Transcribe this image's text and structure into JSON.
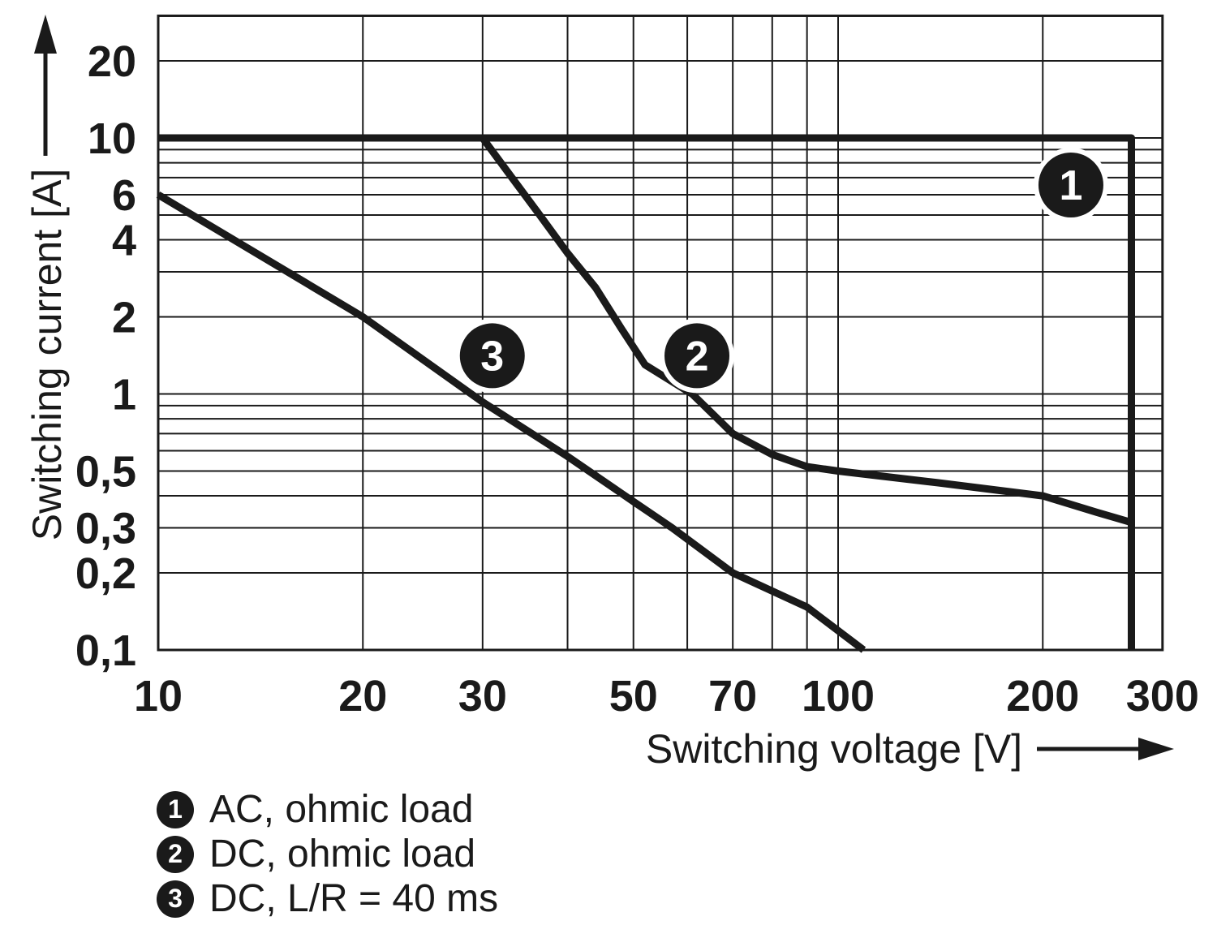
{
  "chart_data": {
    "type": "line",
    "scale": "log-log",
    "grid": true,
    "x_axis": {
      "label": "Switching voltage [V]",
      "unit": "V",
      "range": [
        10,
        300
      ],
      "tick_labels": [
        "10",
        "20",
        "30",
        "50",
        "70",
        "100",
        "200",
        "300"
      ],
      "tick_values": [
        10,
        20,
        30,
        50,
        70,
        100,
        200,
        300
      ],
      "gridlines": [
        20,
        30,
        40,
        50,
        60,
        70,
        80,
        90,
        100,
        200
      ],
      "arrow": "right"
    },
    "y_axis": {
      "label": "Switching current [A]",
      "unit": "A",
      "range": [
        0.1,
        30
      ],
      "tick_labels": [
        "20",
        "10",
        "6",
        "4",
        "2",
        "1",
        "0,5",
        "0,3",
        "0,2",
        "0,1"
      ],
      "tick_values": [
        20,
        10,
        6,
        4,
        2,
        1,
        0.5,
        0.3,
        0.2,
        0.1
      ],
      "gridlines": [
        20,
        10,
        9,
        8,
        7,
        6,
        5,
        4,
        3,
        2,
        1,
        0.9,
        0.8,
        0.7,
        0.6,
        0.5,
        0.4,
        0.3,
        0.2
      ],
      "arrow": "up"
    },
    "series": [
      {
        "id": "1",
        "name": "AC, ohmic load",
        "points": [
          [
            10,
            10
          ],
          [
            270,
            10
          ],
          [
            270,
            0.1
          ]
        ]
      },
      {
        "id": "2",
        "name": "DC, ohmic load",
        "points": [
          [
            30,
            10
          ],
          [
            33,
            7.1
          ],
          [
            36,
            5.2
          ],
          [
            40,
            3.55
          ],
          [
            44,
            2.6
          ],
          [
            48,
            1.8
          ],
          [
            52,
            1.3
          ],
          [
            56,
            1.15
          ],
          [
            61,
            1.0
          ],
          [
            70,
            0.7
          ],
          [
            80,
            0.58
          ],
          [
            90,
            0.52
          ],
          [
            100,
            0.5
          ],
          [
            140,
            0.45
          ],
          [
            200,
            0.4
          ],
          [
            240,
            0.345
          ],
          [
            270,
            0.315
          ]
        ]
      },
      {
        "id": "3",
        "name": "DC, L/R = 40 ms",
        "points": [
          [
            10,
            6
          ],
          [
            20,
            2
          ],
          [
            30,
            0.93
          ],
          [
            40,
            0.57
          ],
          [
            50,
            0.38
          ],
          [
            57,
            0.3
          ],
          [
            70,
            0.2
          ],
          [
            90,
            0.147
          ],
          [
            109,
            0.1
          ]
        ]
      }
    ],
    "markers": [
      {
        "label": "1",
        "x": 220,
        "y": 6.55
      },
      {
        "label": "2",
        "x": 62,
        "y": 1.41
      },
      {
        "label": "3",
        "x": 31,
        "y": 1.41
      }
    ]
  },
  "legend": {
    "items": [
      {
        "badge": "1",
        "label": "AC, ohmic load"
      },
      {
        "badge": "2",
        "label": "DC, ohmic load"
      },
      {
        "badge": "3",
        "label": "DC, L/R = 40 ms"
      }
    ]
  },
  "colors": {
    "ink": "#1a1a1a",
    "background": "#ffffff",
    "badge_fill": "#1a1a1a",
    "badge_text": "#ffffff"
  }
}
